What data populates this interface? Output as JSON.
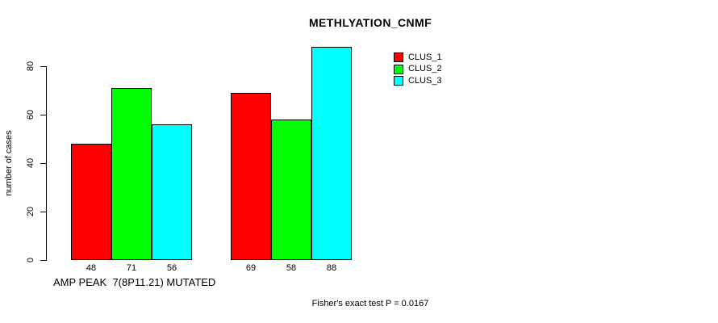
{
  "chart_data": {
    "type": "bar",
    "title": "METHLYATION_CNMF",
    "ylabel": "number of cases",
    "xlabel": "AMP PEAK  7(8P11.21) MUTATED",
    "note": "Fisher's exact test P = 0.0167",
    "categories": [
      "AMP PEAK  7(8P11.21) MUTATED",
      ""
    ],
    "series": [
      {
        "name": "CLUS_1",
        "color": "#ff0000",
        "values": [
          48,
          69
        ]
      },
      {
        "name": "CLUS_2",
        "color": "#00ff00",
        "values": [
          71,
          58
        ]
      },
      {
        "name": "CLUS_3",
        "color": "#00ffff",
        "values": [
          56,
          88
        ]
      }
    ],
    "bar_value_labels": [
      48,
      71,
      56,
      69,
      58,
      88
    ],
    "yticks": [
      0,
      20,
      40,
      60,
      80
    ],
    "ylim": [
      0,
      88
    ],
    "grid": false,
    "legend_position": "top-right",
    "background_color": "#ffffff",
    "axis_color": "#000000"
  }
}
